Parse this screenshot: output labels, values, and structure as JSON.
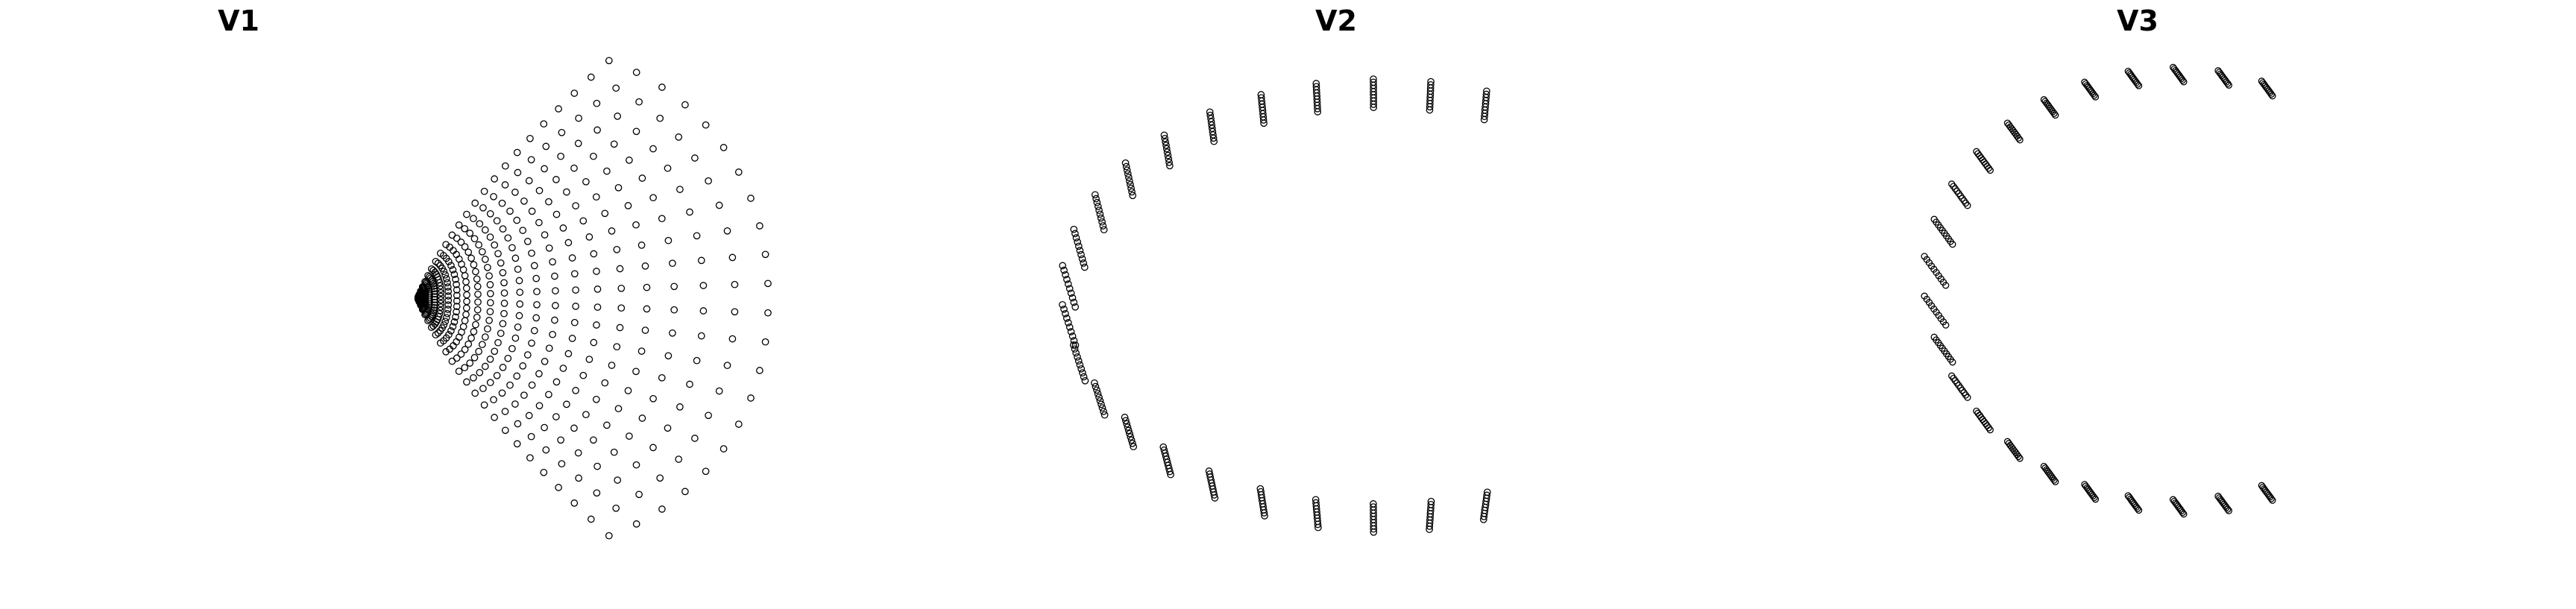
{
  "colors": {
    "marker_edge": "#000000",
    "marker_face": "none",
    "background": "#ffffff"
  },
  "chart_data": [
    {
      "type": "scatter",
      "title": "V1",
      "axes_visible": false,
      "marker": "circle-open",
      "grid": false,
      "radial_lines": 22,
      "points_per_line": 24,
      "shape": "fan of radial point lines converging at the left-center, spreading to the right"
    },
    {
      "type": "scatter",
      "title": "V2",
      "axes_visible": false,
      "marker": "circle-open",
      "grid": false,
      "radial_lines": 22,
      "points_per_line": 10,
      "shape": "C-shaped arc of short point columns opening to the right"
    },
    {
      "type": "scatter",
      "title": "V3",
      "axes_visible": false,
      "marker": "circle-open",
      "grid": false,
      "radial_lines": 22,
      "points_per_line": 10,
      "shape": "thin C-shaped arc of short curved point strokes opening to the right"
    }
  ]
}
